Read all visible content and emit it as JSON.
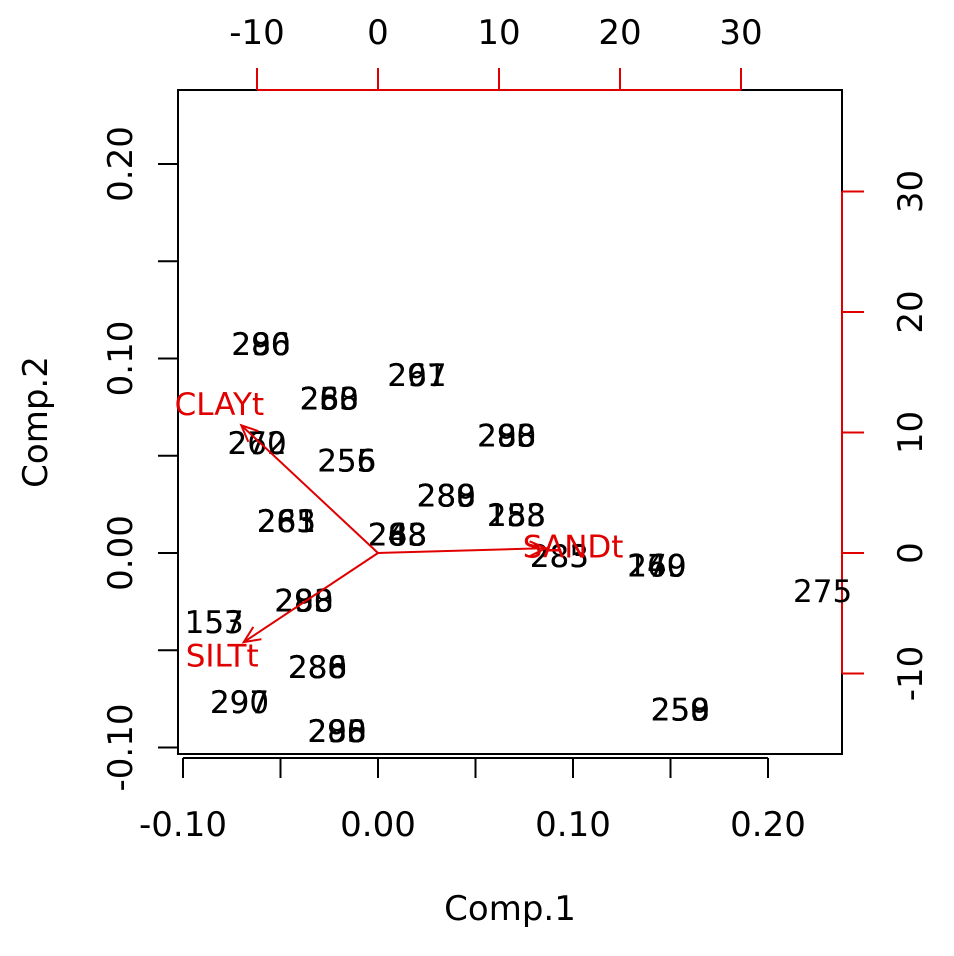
{
  "chart_data": {
    "type": "scatter",
    "title": "",
    "xlabel": "Comp.1",
    "ylabel": "Comp.2",
    "xlim": [
      -0.1,
      0.24
    ],
    "ylim": [
      -0.1,
      0.24
    ],
    "x_ticks": [
      -0.1,
      -0.05,
      0.0,
      0.05,
      0.1,
      0.15,
      0.2
    ],
    "x_tick_labels": [
      "-0.10",
      "",
      "0.00",
      "",
      "0.10",
      "",
      "0.20"
    ],
    "y_ticks": [
      -0.1,
      -0.05,
      0.0,
      0.05,
      0.1,
      0.15,
      0.2
    ],
    "y_tick_labels": [
      "-0.10",
      "",
      "0.00",
      "",
      "0.10",
      "",
      "0.20"
    ],
    "top_ticks": [
      -10,
      0,
      10,
      20,
      30
    ],
    "right_ticks": [
      -10,
      0,
      10,
      20,
      30
    ],
    "arrow_color": "#e00000",
    "point_labels": [
      {
        "label": "290",
        "x": -0.06,
        "y": 0.107
      },
      {
        "label": "280",
        "x": -0.06,
        "y": 0.107
      },
      {
        "label": "286",
        "x": -0.06,
        "y": 0.107
      },
      {
        "label": "250",
        "x": -0.025,
        "y": 0.079
      },
      {
        "label": "268",
        "x": -0.025,
        "y": 0.079
      },
      {
        "label": "283",
        "x": -0.025,
        "y": 0.079
      },
      {
        "label": "270",
        "x": -0.062,
        "y": 0.056
      },
      {
        "label": "262",
        "x": -0.062,
        "y": 0.056
      },
      {
        "label": "255",
        "x": -0.016,
        "y": 0.047
      },
      {
        "label": "256",
        "x": -0.016,
        "y": 0.047
      },
      {
        "label": "261",
        "x": 0.02,
        "y": 0.091
      },
      {
        "label": "297",
        "x": 0.02,
        "y": 0.091
      },
      {
        "label": "263",
        "x": -0.047,
        "y": 0.016
      },
      {
        "label": "265",
        "x": -0.047,
        "y": 0.016
      },
      {
        "label": "281",
        "x": -0.047,
        "y": 0.016
      },
      {
        "label": "280",
        "x": 0.035,
        "y": 0.029
      },
      {
        "label": "288",
        "x": 0.035,
        "y": 0.029
      },
      {
        "label": "289",
        "x": 0.035,
        "y": 0.029
      },
      {
        "label": "280",
        "x": 0.066,
        "y": 0.06
      },
      {
        "label": "293",
        "x": 0.066,
        "y": 0.06
      },
      {
        "label": "288",
        "x": 0.066,
        "y": 0.06
      },
      {
        "label": "158",
        "x": 0.071,
        "y": 0.019
      },
      {
        "label": "153",
        "x": 0.071,
        "y": 0.019
      },
      {
        "label": "283",
        "x": 0.071,
        "y": 0.019
      },
      {
        "label": "263",
        "x": 0.01,
        "y": 0.009
      },
      {
        "label": "248",
        "x": 0.01,
        "y": 0.009
      },
      {
        "label": "288",
        "x": 0.01,
        "y": 0.009
      },
      {
        "label": "285",
        "x": 0.093,
        "y": -0.002
      },
      {
        "label": "283",
        "x": 0.093,
        "y": -0.002
      },
      {
        "label": "160",
        "x": 0.143,
        "y": -0.007
      },
      {
        "label": "240",
        "x": 0.143,
        "y": -0.007
      },
      {
        "label": "279",
        "x": 0.143,
        "y": -0.007
      },
      {
        "label": "275",
        "x": 0.228,
        "y": -0.02
      },
      {
        "label": "290",
        "x": -0.038,
        "y": -0.025
      },
      {
        "label": "283",
        "x": -0.038,
        "y": -0.025
      },
      {
        "label": "288",
        "x": -0.038,
        "y": -0.025
      },
      {
        "label": "157",
        "x": -0.084,
        "y": -0.036
      },
      {
        "label": "153",
        "x": -0.084,
        "y": -0.036
      },
      {
        "label": "286",
        "x": -0.031,
        "y": -0.059
      },
      {
        "label": "280",
        "x": -0.031,
        "y": -0.059
      },
      {
        "label": "288",
        "x": -0.031,
        "y": -0.059
      },
      {
        "label": "297",
        "x": -0.071,
        "y": -0.077
      },
      {
        "label": "290",
        "x": -0.071,
        "y": -0.077
      },
      {
        "label": "290",
        "x": -0.021,
        "y": -0.092
      },
      {
        "label": "285",
        "x": -0.021,
        "y": -0.092
      },
      {
        "label": "298",
        "x": -0.021,
        "y": -0.092
      },
      {
        "label": "250",
        "x": 0.155,
        "y": -0.081
      },
      {
        "label": "258",
        "x": 0.155,
        "y": -0.081
      },
      {
        "label": "259",
        "x": 0.155,
        "y": -0.081
      }
    ],
    "arrows": [
      {
        "name": "CLAYt",
        "x": -11.3,
        "y": 10.6
      },
      {
        "name": "SILTt",
        "x": -11.1,
        "y": -7.4
      },
      {
        "name": "SANDt",
        "x": 13.9,
        "y": 0.4
      }
    ]
  }
}
